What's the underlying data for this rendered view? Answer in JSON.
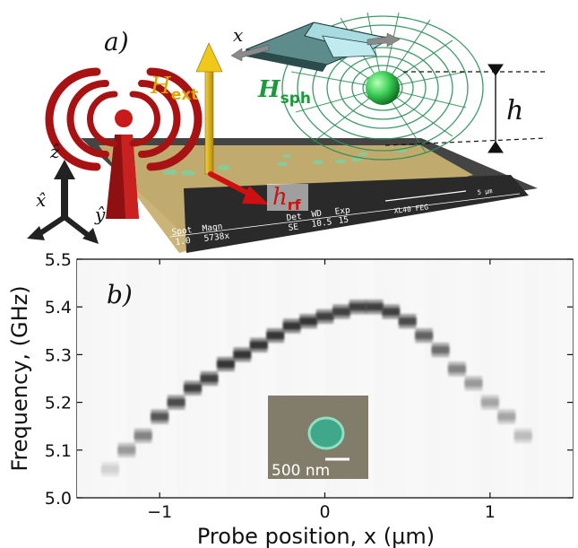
{
  "panel_a": {
    "label": "a)",
    "h_ext": "H",
    "h_ext_sub": "ext",
    "h_sph": "H",
    "h_sph_sub": "sph",
    "h_rf": "h",
    "h_rf_sub": "rf",
    "height_label": "h",
    "x_axis_label": "x",
    "axis_z": "ẑ",
    "axis_x": "x̂",
    "axis_y": "ŷ",
    "sem_bar": {
      "row1": [
        "Spot",
        "Magn",
        "Det",
        "WD",
        "Exp",
        "",
        "5 µm"
      ],
      "row2": [
        "1.0",
        "5738x",
        "SE",
        "10.5",
        "15",
        "XL40 FEG"
      ]
    },
    "colors": {
      "h_ext": "#d8a800",
      "h_sph": "#1a9a3a",
      "h_rf": "#cc1111",
      "antenna": "#a81212",
      "field_lines": "#2b8f55",
      "sphere": "#3fd05a",
      "substrate": "#c8b070",
      "sem_panel": "#2a2a2a"
    }
  },
  "panel_b": {
    "label": "b)",
    "inset_scale": "500 nm"
  },
  "chart_data": {
    "type": "heatmap",
    "xlabel": "Probe position, x (μm)",
    "ylabel": "Frequency, (GHz)",
    "xlim": [
      -1.5,
      1.5
    ],
    "ylim": [
      5.0,
      5.5
    ],
    "x_ticks": [
      -1,
      0,
      1
    ],
    "x_tick_labels": [
      "−1",
      "0",
      "1"
    ],
    "y_ticks": [
      5.0,
      5.1,
      5.2,
      5.3,
      5.4,
      5.5
    ],
    "y_tick_labels": [
      "5.0",
      "5.1",
      "5.2",
      "5.3",
      "5.4",
      "5.5"
    ],
    "colormap": "gray_r",
    "peak_x": [
      -1.3,
      -1.2,
      -1.1,
      -1.0,
      -0.9,
      -0.8,
      -0.7,
      -0.6,
      -0.5,
      -0.4,
      -0.3,
      -0.2,
      -0.1,
      0.0,
      0.1,
      0.2,
      0.3,
      0.4,
      0.5,
      0.6,
      0.7,
      0.8,
      0.9,
      1.0,
      1.1,
      1.2
    ],
    "peak_freq": [
      5.06,
      5.1,
      5.13,
      5.17,
      5.2,
      5.23,
      5.25,
      5.28,
      5.3,
      5.32,
      5.34,
      5.36,
      5.37,
      5.38,
      5.39,
      5.4,
      5.4,
      5.39,
      5.37,
      5.34,
      5.31,
      5.27,
      5.24,
      5.2,
      5.17,
      5.13
    ],
    "peak_intensity": [
      0.2,
      0.45,
      0.55,
      0.75,
      0.8,
      0.85,
      0.85,
      0.9,
      0.9,
      0.9,
      0.9,
      0.9,
      0.9,
      0.85,
      0.85,
      0.85,
      0.85,
      0.85,
      0.8,
      0.7,
      0.65,
      0.55,
      0.45,
      0.4,
      0.4,
      0.3
    ]
  }
}
